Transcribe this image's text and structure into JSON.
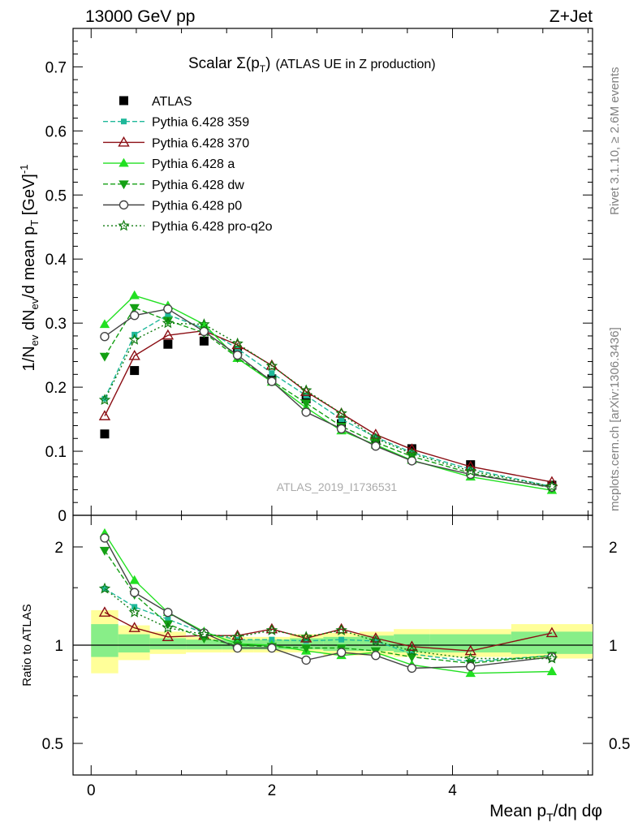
{
  "header": {
    "left": "13000 GeV pp",
    "right": "Z+Jet"
  },
  "side_labels": {
    "rivet": "Rivet 3.1.10, ≥ 2.6M events",
    "mcplots": "mcplots.cern.ch [arXiv:1306.3436]"
  },
  "analysis_id": "ATLAS_2019_I1736531",
  "colors": {
    "ATLAS": "#000000",
    "Pythia 6.428 359": "#1fb89a",
    "Pythia 6.428 370": "#8b0e14",
    "Pythia 6.428 a": "#22e022",
    "Pythia 6.428 dw": "#14a014",
    "Pythia 6.428 p0": "#444444",
    "Pythia 6.428 pro-q2o": "#0e7a0e",
    "band_outer": "#ffff99",
    "band_inner": "#88ee88"
  },
  "chart_data": [
    {
      "type": "line",
      "title": "Scalar Σ(pT) (ATLAS UE in Z production)",
      "title_main": "Scalar ",
      "title_sigma": "Σ(p",
      "title_sub": "T",
      "title_close": ")",
      "title_rest": "(ATLAS UE in Z production)",
      "ylabel": "1/Nev dNev/d mean pT [GeV]-1",
      "xlim": [
        -0.2,
        5.55
      ],
      "ylim": [
        0,
        0.76
      ],
      "yticks": [
        0.1,
        0.2,
        0.3,
        0.4,
        0.5,
        0.6,
        0.7
      ],
      "ytick_labels": [
        "0.1",
        "0.2",
        "0.3",
        "0.4",
        "0.5",
        "0.6",
        "0.7"
      ],
      "x": [
        0.15,
        0.48,
        0.85,
        1.25,
        1.62,
        2.0,
        2.38,
        2.77,
        3.15,
        3.55,
        4.2,
        5.1
      ],
      "legend_position": "top-left",
      "series": [
        {
          "name": "ATLAS",
          "values": [
            0.127,
            0.226,
            0.267,
            0.272,
            0.255,
            0.213,
            0.182,
            0.143,
            0.117,
            0.104,
            0.079,
            0.047
          ]
        },
        {
          "name": "Pythia 6.428 359",
          "values": [
            0.182,
            0.282,
            0.313,
            0.292,
            0.26,
            0.222,
            0.187,
            0.15,
            0.122,
            0.098,
            0.072,
            0.045
          ]
        },
        {
          "name": "Pythia 6.428 370",
          "values": [
            0.155,
            0.249,
            0.281,
            0.288,
            0.266,
            0.234,
            0.193,
            0.159,
            0.126,
            0.103,
            0.076,
            0.052
          ]
        },
        {
          "name": "Pythia 6.428 a",
          "values": [
            0.298,
            0.343,
            0.327,
            0.298,
            0.245,
            0.208,
            0.168,
            0.132,
            0.11,
            0.086,
            0.06,
            0.039
          ]
        },
        {
          "name": "Pythia 6.428 dw",
          "values": [
            0.248,
            0.324,
            0.304,
            0.285,
            0.246,
            0.21,
            0.175,
            0.139,
            0.114,
            0.092,
            0.066,
            0.043
          ]
        },
        {
          "name": "Pythia 6.428 p0",
          "values": [
            0.279,
            0.312,
            0.322,
            0.287,
            0.25,
            0.209,
            0.161,
            0.135,
            0.108,
            0.085,
            0.064,
            0.044
          ]
        },
        {
          "name": "Pythia 6.428 pro-q2o",
          "values": [
            0.18,
            0.274,
            0.3,
            0.298,
            0.268,
            0.233,
            0.195,
            0.159,
            0.12,
            0.096,
            0.069,
            0.045
          ]
        }
      ]
    },
    {
      "type": "line",
      "ylabel": "Ratio to ATLAS",
      "xlabel": "Mean pT/dη dφ",
      "xlabel_main": "Mean p",
      "xlabel_sub": "T",
      "xlabel_rest": "/dη dφ",
      "xlim": [
        -0.2,
        5.55
      ],
      "ylim": [
        0.4,
        2.5
      ],
      "xticks": [
        0,
        2,
        4
      ],
      "xtick_labels": [
        "0",
        "2",
        "4"
      ],
      "yticks": [
        0.5,
        1,
        2
      ],
      "ytick_labels": [
        "0.5",
        "1",
        "2"
      ],
      "x": [
        0.15,
        0.48,
        0.85,
        1.25,
        1.62,
        2.0,
        2.38,
        2.77,
        3.15,
        3.55,
        4.2,
        5.1
      ],
      "bin_edges": [
        0.0,
        0.3,
        0.65,
        1.05,
        1.45,
        1.8,
        2.2,
        2.57,
        2.97,
        3.35,
        3.75,
        4.65,
        5.55
      ],
      "band_outer": [
        [
          0.82,
          1.28
        ],
        [
          0.9,
          1.15
        ],
        [
          0.94,
          1.1
        ],
        [
          0.95,
          1.06
        ],
        [
          0.95,
          1.06
        ],
        [
          0.95,
          1.06
        ],
        [
          0.95,
          1.08
        ],
        [
          0.93,
          1.09
        ],
        [
          0.93,
          1.1
        ],
        [
          0.92,
          1.12
        ],
        [
          0.92,
          1.12
        ],
        [
          0.91,
          1.16
        ]
      ],
      "band_inner": [
        [
          0.92,
          1.16
        ],
        [
          0.95,
          1.08
        ],
        [
          0.97,
          1.05
        ],
        [
          0.97,
          1.04
        ],
        [
          0.97,
          1.04
        ],
        [
          0.97,
          1.04
        ],
        [
          0.97,
          1.05
        ],
        [
          0.96,
          1.06
        ],
        [
          0.96,
          1.07
        ],
        [
          0.95,
          1.08
        ],
        [
          0.95,
          1.08
        ],
        [
          0.94,
          1.1
        ]
      ],
      "series": [
        {
          "name": "Pythia 6.428 359",
          "values": [
            1.49,
            1.31,
            1.2,
            1.09,
            1.04,
            1.04,
            1.03,
            1.04,
            1.03,
            0.94,
            0.89,
            0.93
          ]
        },
        {
          "name": "Pythia 6.428 370",
          "values": [
            1.26,
            1.13,
            1.06,
            1.07,
            1.07,
            1.12,
            1.05,
            1.12,
            1.05,
            0.99,
            0.96,
            1.09
          ]
        },
        {
          "name": "Pythia 6.428 a",
          "values": [
            2.2,
            1.58,
            1.26,
            1.1,
            1.01,
            1.0,
            0.96,
            0.93,
            0.95,
            0.87,
            0.82,
            0.83
          ]
        },
        {
          "name": "Pythia 6.428 dw",
          "values": [
            1.95,
            1.43,
            1.16,
            1.05,
            1.0,
            0.99,
            0.98,
            0.98,
            0.96,
            0.92,
            0.88,
            0.93
          ]
        },
        {
          "name": "Pythia 6.428 p0",
          "values": [
            2.13,
            1.45,
            1.26,
            1.09,
            0.98,
            0.98,
            0.9,
            0.95,
            0.93,
            0.85,
            0.86,
            0.92
          ]
        },
        {
          "name": "Pythia 6.428 pro-q2o",
          "values": [
            1.49,
            1.26,
            1.13,
            1.08,
            1.06,
            1.11,
            1.06,
            1.11,
            1.03,
            0.96,
            0.91,
            0.91
          ]
        }
      ]
    }
  ]
}
